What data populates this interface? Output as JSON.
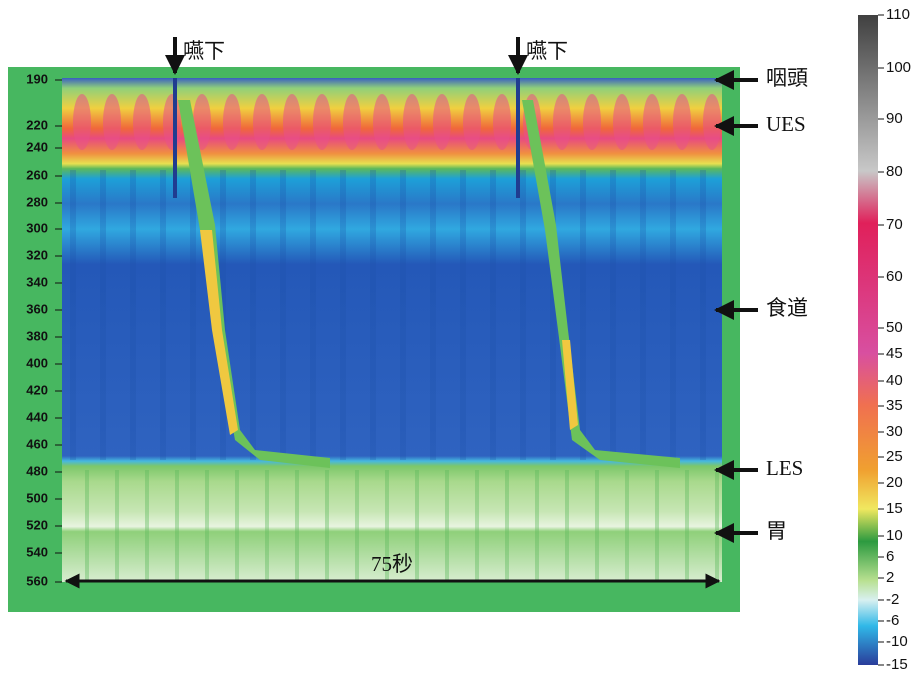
{
  "y_axis": {
    "labels": [
      "190",
      "220",
      "240",
      "260",
      "280",
      "300",
      "320",
      "340",
      "360",
      "380",
      "400",
      "420",
      "440",
      "460",
      "480",
      "500",
      "520",
      "540",
      "560"
    ]
  },
  "annotations": {
    "swallow": [
      "嚥下",
      "嚥下"
    ],
    "regions": [
      "咽頭",
      "UES",
      "食道",
      "LES",
      "胃"
    ],
    "duration": "75秒"
  },
  "colorbar": {
    "labels": [
      "110",
      "100",
      "90",
      "80",
      "70",
      "60",
      "50",
      "45",
      "40",
      "35",
      "30",
      "25",
      "20",
      "15",
      "10",
      "6",
      "2",
      "-2",
      "-6",
      "-10",
      "-15"
    ]
  }
}
